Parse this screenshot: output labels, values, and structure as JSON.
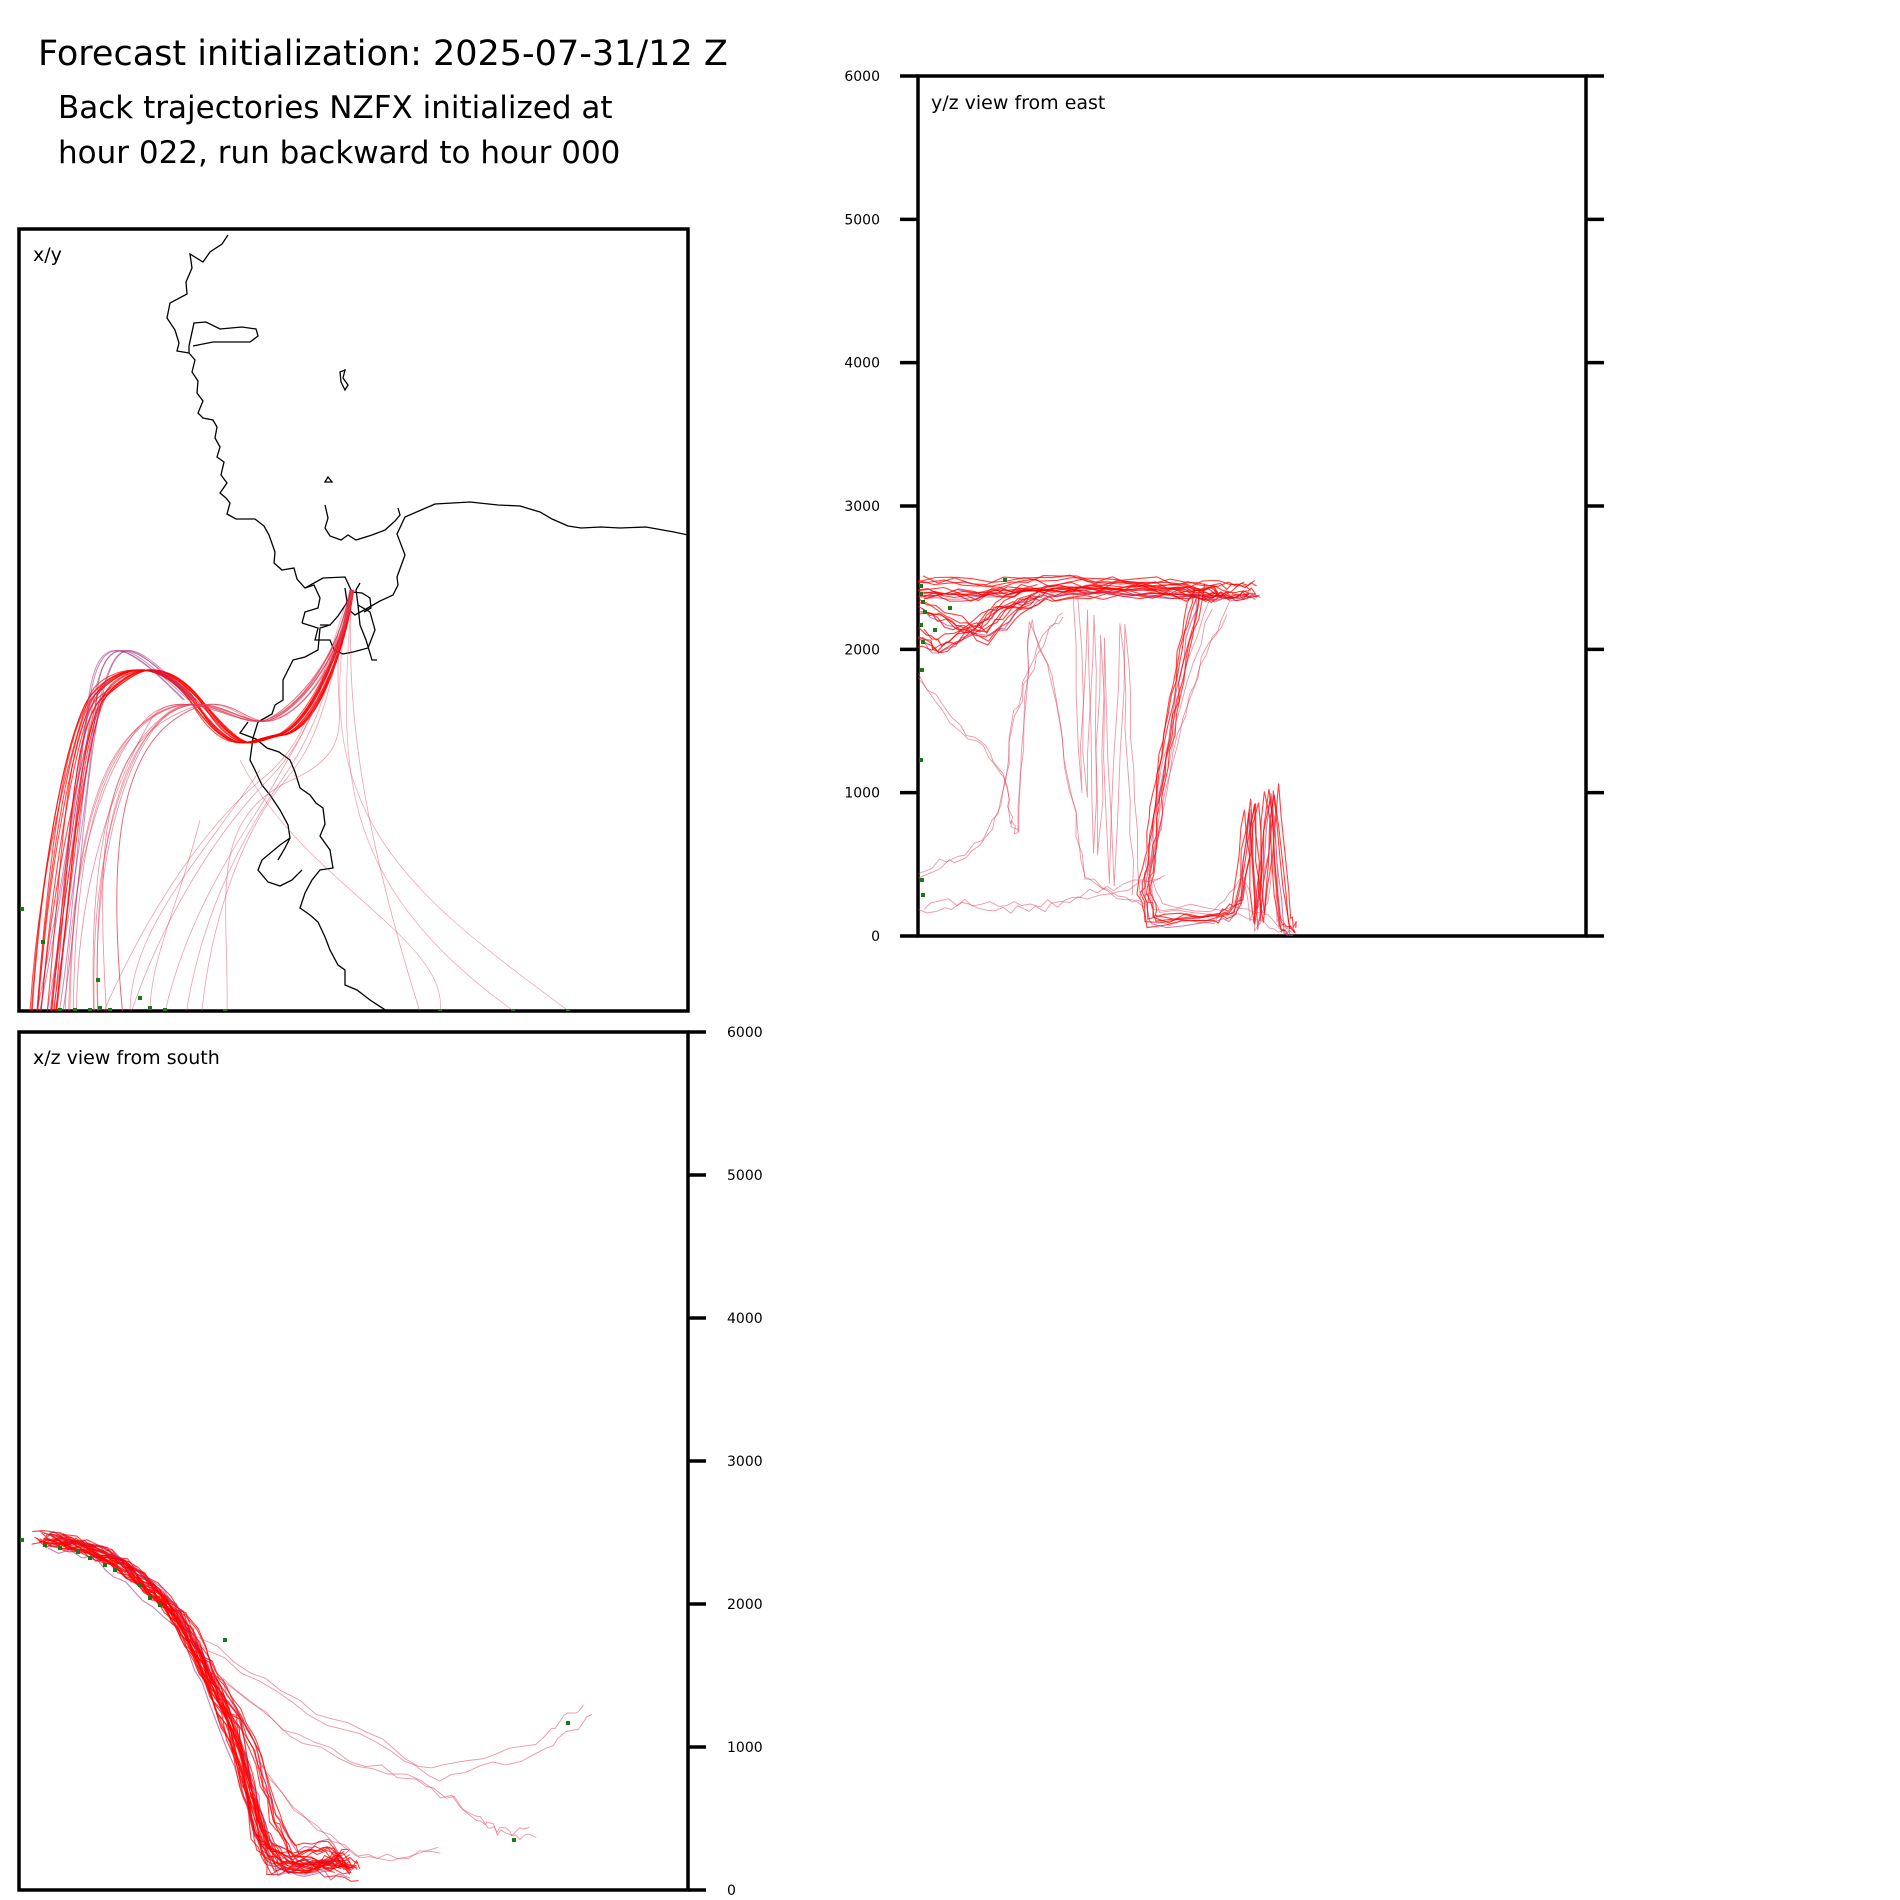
{
  "figure": {
    "title": "Forecast initialization: 2025-07-31/12 Z",
    "subtitle_line1": "Back trajectories NZFX initialized at",
    "subtitle_line2": "hour 022, run backward to hour 000"
  },
  "colors": {
    "main_trajectory": "#ff0000",
    "secondary_trajectory": "#e0405a",
    "purple_trajectory": "#a0307a",
    "endpoint_marker": "#1a7a1a",
    "coastline": "#000000",
    "axes": "#000000"
  },
  "chart_data": [
    {
      "type": "line",
      "panel": "x/y",
      "title": "x/y",
      "description_of_content": "map",
      "grid": false
    },
    {
      "type": "line",
      "panel": "x/z view from south",
      "title": "x/z view from south",
      "ylim": [
        0,
        6000
      ],
      "yticks": [
        "0",
        "1000",
        "2000",
        "3000",
        "4000",
        "5000",
        "6000"
      ],
      "yaxis_side": "right",
      "grid": false,
      "series": [
        {
          "values": [
            [
              0.03,
              2450
            ],
            [
              0.08,
              2420
            ],
            [
              0.14,
              2300
            ],
            [
              0.2,
              2100
            ],
            [
              0.26,
              1800
            ],
            [
              0.3,
              1300
            ],
            [
              0.34,
              800
            ],
            [
              0.36,
              350
            ],
            [
              0.38,
              150
            ],
            [
              0.44,
              150
            ],
            [
              0.48,
              200
            ],
            [
              0.5,
              150
            ]
          ]
        },
        {
          "values": [
            [
              0.04,
              2460
            ],
            [
              0.1,
              2400
            ],
            [
              0.16,
              2250
            ],
            [
              0.22,
              2000
            ],
            [
              0.27,
              1600
            ],
            [
              0.32,
              1100
            ],
            [
              0.35,
              600
            ],
            [
              0.37,
              250
            ],
            [
              0.4,
              140
            ],
            [
              0.46,
              170
            ],
            [
              0.49,
              250
            ]
          ]
        },
        {
          "values": [
            [
              0.05,
              2440
            ],
            [
              0.12,
              2350
            ],
            [
              0.18,
              2150
            ],
            [
              0.24,
              1900
            ],
            [
              0.28,
              1500
            ],
            [
              0.33,
              900
            ],
            [
              0.36,
              400
            ],
            [
              0.39,
              180
            ],
            [
              0.45,
              160
            ],
            [
              0.5,
              120
            ]
          ]
        },
        {
          "values": [
            [
              0.03,
              2470
            ],
            [
              0.09,
              2430
            ],
            [
              0.15,
              2320
            ],
            [
              0.21,
              2080
            ],
            [
              0.25,
              1750
            ],
            [
              0.29,
              1400
            ],
            [
              0.32,
              1200
            ],
            [
              0.34,
              700
            ],
            [
              0.37,
              300
            ],
            [
              0.42,
              200
            ],
            [
              0.47,
              180
            ]
          ]
        },
        {
          "values": [
            [
              0.06,
              2430
            ],
            [
              0.13,
              2330
            ],
            [
              0.19,
              2120
            ],
            [
              0.23,
              1950
            ],
            [
              0.27,
              1650
            ],
            [
              0.31,
              1350
            ],
            [
              0.35,
              1000
            ],
            [
              0.38,
              500
            ],
            [
              0.41,
              250
            ],
            [
              0.46,
              300
            ],
            [
              0.49,
              150
            ]
          ]
        },
        {
          "values": [
            [
              0.25,
              1800
            ],
            [
              0.35,
              1500
            ],
            [
              0.45,
              1200
            ],
            [
              0.55,
              1000
            ],
            [
              0.62,
              800
            ],
            [
              0.7,
              900
            ],
            [
              0.78,
              1000
            ],
            [
              0.82,
              1150
            ],
            [
              0.85,
              1250
            ]
          ]
        },
        {
          "values": [
            [
              0.3,
              1500
            ],
            [
              0.4,
              1100
            ],
            [
              0.5,
              900
            ],
            [
              0.6,
              750
            ],
            [
              0.66,
              600
            ],
            [
              0.7,
              450
            ],
            [
              0.72,
              400
            ],
            [
              0.74,
              380
            ],
            [
              0.77,
              390
            ]
          ]
        },
        {
          "values": [
            [
              0.35,
              900
            ],
            [
              0.42,
              500
            ],
            [
              0.5,
              250
            ],
            [
              0.56,
              230
            ],
            [
              0.62,
              300
            ]
          ]
        }
      ]
    },
    {
      "type": "line",
      "panel": "y/z view from east",
      "title": "y/z view from east",
      "ylim": [
        0,
        6000
      ],
      "yticks": [
        "0",
        "1000",
        "2000",
        "3000",
        "4000",
        "5000",
        "6000"
      ],
      "yaxis_side": "left",
      "grid": false,
      "series": [
        {
          "values": [
            [
              0.0,
              2450
            ],
            [
              0.1,
              2440
            ],
            [
              0.2,
              2460
            ],
            [
              0.3,
              2450
            ],
            [
              0.4,
              2420
            ],
            [
              0.46,
              2410
            ],
            [
              0.5,
              2420
            ]
          ]
        },
        {
          "values": [
            [
              0.0,
              2400
            ],
            [
              0.08,
              2380
            ],
            [
              0.15,
              2420
            ],
            [
              0.25,
              2430
            ],
            [
              0.35,
              2440
            ],
            [
              0.42,
              2400
            ],
            [
              0.47,
              2380
            ],
            [
              0.5,
              2400
            ]
          ]
        },
        {
          "values": [
            [
              0.0,
              2300
            ],
            [
              0.05,
              2200
            ],
            [
              0.1,
              2100
            ],
            [
              0.15,
              2300
            ],
            [
              0.2,
              2400
            ],
            [
              0.3,
              2420
            ],
            [
              0.4,
              2400
            ],
            [
              0.45,
              2380
            ]
          ]
        },
        {
          "values": [
            [
              0.0,
              2100
            ],
            [
              0.03,
              2000
            ],
            [
              0.08,
              2150
            ],
            [
              0.12,
              2300
            ],
            [
              0.18,
              2380
            ]
          ]
        },
        {
          "values": [
            [
              0.42,
              2400
            ],
            [
              0.4,
              2000
            ],
            [
              0.38,
              1500
            ],
            [
              0.36,
              1000
            ],
            [
              0.35,
              600
            ],
            [
              0.34,
              300
            ],
            [
              0.35,
              100
            ],
            [
              0.45,
              120
            ],
            [
              0.48,
              200
            ],
            [
              0.5,
              900
            ],
            [
              0.51,
              100
            ],
            [
              0.53,
              1000
            ],
            [
              0.55,
              80
            ],
            [
              0.56,
              20
            ]
          ]
        },
        {
          "values": [
            [
              0.44,
              2350
            ],
            [
              0.4,
              1800
            ],
            [
              0.37,
              1200
            ],
            [
              0.345,
              500
            ],
            [
              0.35,
              150
            ],
            [
              0.44,
              130
            ],
            [
              0.47,
              250
            ],
            [
              0.49,
              400
            ],
            [
              0.5,
              100
            ],
            [
              0.52,
              250
            ],
            [
              0.53,
              900
            ],
            [
              0.54,
              100
            ],
            [
              0.56,
              30
            ]
          ]
        },
        {
          "values": [
            [
              0.46,
              2300
            ],
            [
              0.42,
              1900
            ],
            [
              0.385,
              1400
            ],
            [
              0.36,
              800
            ],
            [
              0.34,
              400
            ],
            [
              0.36,
              200
            ],
            [
              0.45,
              180
            ],
            [
              0.5,
              150
            ],
            [
              0.52,
              100
            ],
            [
              0.55,
              50
            ]
          ]
        },
        {
          "values": [
            [
              0.0,
              1800
            ],
            [
              0.05,
              1500
            ],
            [
              0.1,
              1300
            ],
            [
              0.13,
              1100
            ],
            [
              0.14,
              800
            ],
            [
              0.15,
              700
            ],
            [
              0.16,
              1500
            ],
            [
              0.17,
              2200
            ],
            [
              0.2,
              1800
            ],
            [
              0.23,
              1000
            ],
            [
              0.25,
              400
            ],
            [
              0.3,
              250
            ],
            [
              0.34,
              200
            ]
          ]
        },
        {
          "values": [
            [
              0.0,
              200
            ],
            [
              0.05,
              230
            ],
            [
              0.1,
              220
            ],
            [
              0.15,
              200
            ],
            [
              0.2,
              220
            ],
            [
              0.25,
              300
            ],
            [
              0.3,
              350
            ],
            [
              0.36,
              400
            ]
          ]
        },
        {
          "values": [
            [
              0.0,
              400
            ],
            [
              0.05,
              500
            ],
            [
              0.1,
              600
            ],
            [
              0.13,
              900
            ],
            [
              0.15,
              1500
            ],
            [
              0.17,
              1800
            ],
            [
              0.2,
              2100
            ],
            [
              0.22,
              2200
            ]
          ]
        },
        {
          "values": [
            [
              0.24,
              2400
            ],
            [
              0.25,
              1000
            ],
            [
              0.26,
              2300
            ],
            [
              0.27,
              600
            ],
            [
              0.28,
              2100
            ],
            [
              0.29,
              400
            ],
            [
              0.31,
              2200
            ],
            [
              0.32,
              1200
            ],
            [
              0.33,
              300
            ]
          ]
        }
      ]
    }
  ]
}
